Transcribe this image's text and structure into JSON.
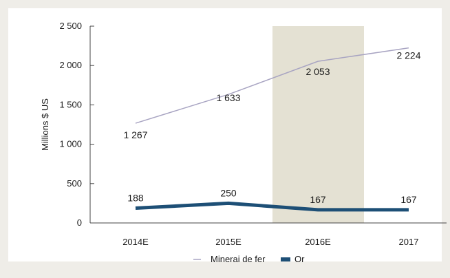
{
  "chart_data": {
    "type": "line",
    "categories": [
      "2014E",
      "2015E",
      "2016E",
      "2017"
    ],
    "series": [
      {
        "name": "Minerai de fer",
        "values": [
          1267,
          1633,
          2053,
          2224
        ],
        "labels": [
          "1 267",
          "1 633",
          "2 053",
          "2 224"
        ],
        "color": "#a8a4c2"
      },
      {
        "name": "Or",
        "values": [
          188,
          250,
          167,
          167
        ],
        "labels": [
          "188",
          "250",
          "167",
          "167"
        ],
        "color": "#1d4f76"
      }
    ],
    "ylabel": "Millions $ US",
    "xlabel": "",
    "ylim": [
      0,
      2500
    ],
    "yticks": [
      0,
      500,
      1000,
      1500,
      2000,
      2500
    ],
    "ytick_labels": [
      "0",
      "500",
      "1 000",
      "1 500",
      "2 000",
      "2 500"
    ],
    "highlight_category": "2016E",
    "highlight_color": "#e4e1d3",
    "grid": false,
    "legend": "bottom-center"
  }
}
